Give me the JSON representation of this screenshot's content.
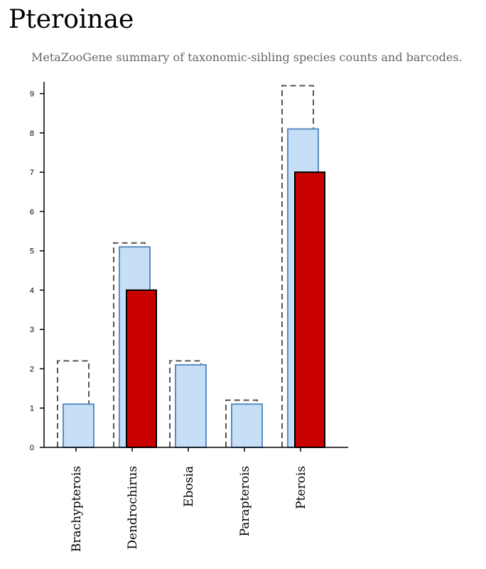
{
  "page": {
    "title": "Pteroinae",
    "subtitle": "MetaZooGene summary of taxonomic-sibling species counts and barcodes."
  },
  "colors": {
    "species_fill": "#c6dff7",
    "species_stroke": "#5b8cc2",
    "barcode_fill": "#c80000",
    "barcode_stroke": "#000000",
    "outline_stroke": "#555555",
    "axis": "#000000"
  },
  "chart_data": {
    "type": "bar",
    "title": "",
    "xlabel": "",
    "ylabel": "",
    "ylim": [
      0,
      9.3
    ],
    "yticks": [
      0,
      1,
      2,
      3,
      4,
      5,
      6,
      7,
      8,
      9
    ],
    "grid": false,
    "categories": [
      "Brachypterois",
      "Dendrochirus",
      "Ebosia",
      "Parapterois",
      "Pterois"
    ],
    "series": [
      {
        "style": "dashed-outline",
        "values": [
          2.2,
          5.2,
          2.2,
          1.2,
          9.2
        ]
      },
      {
        "style": "light-blue",
        "values": [
          1.1,
          5.1,
          2.1,
          1.1,
          8.1
        ]
      },
      {
        "style": "red",
        "values": [
          0,
          4,
          0,
          0,
          7
        ]
      }
    ]
  }
}
